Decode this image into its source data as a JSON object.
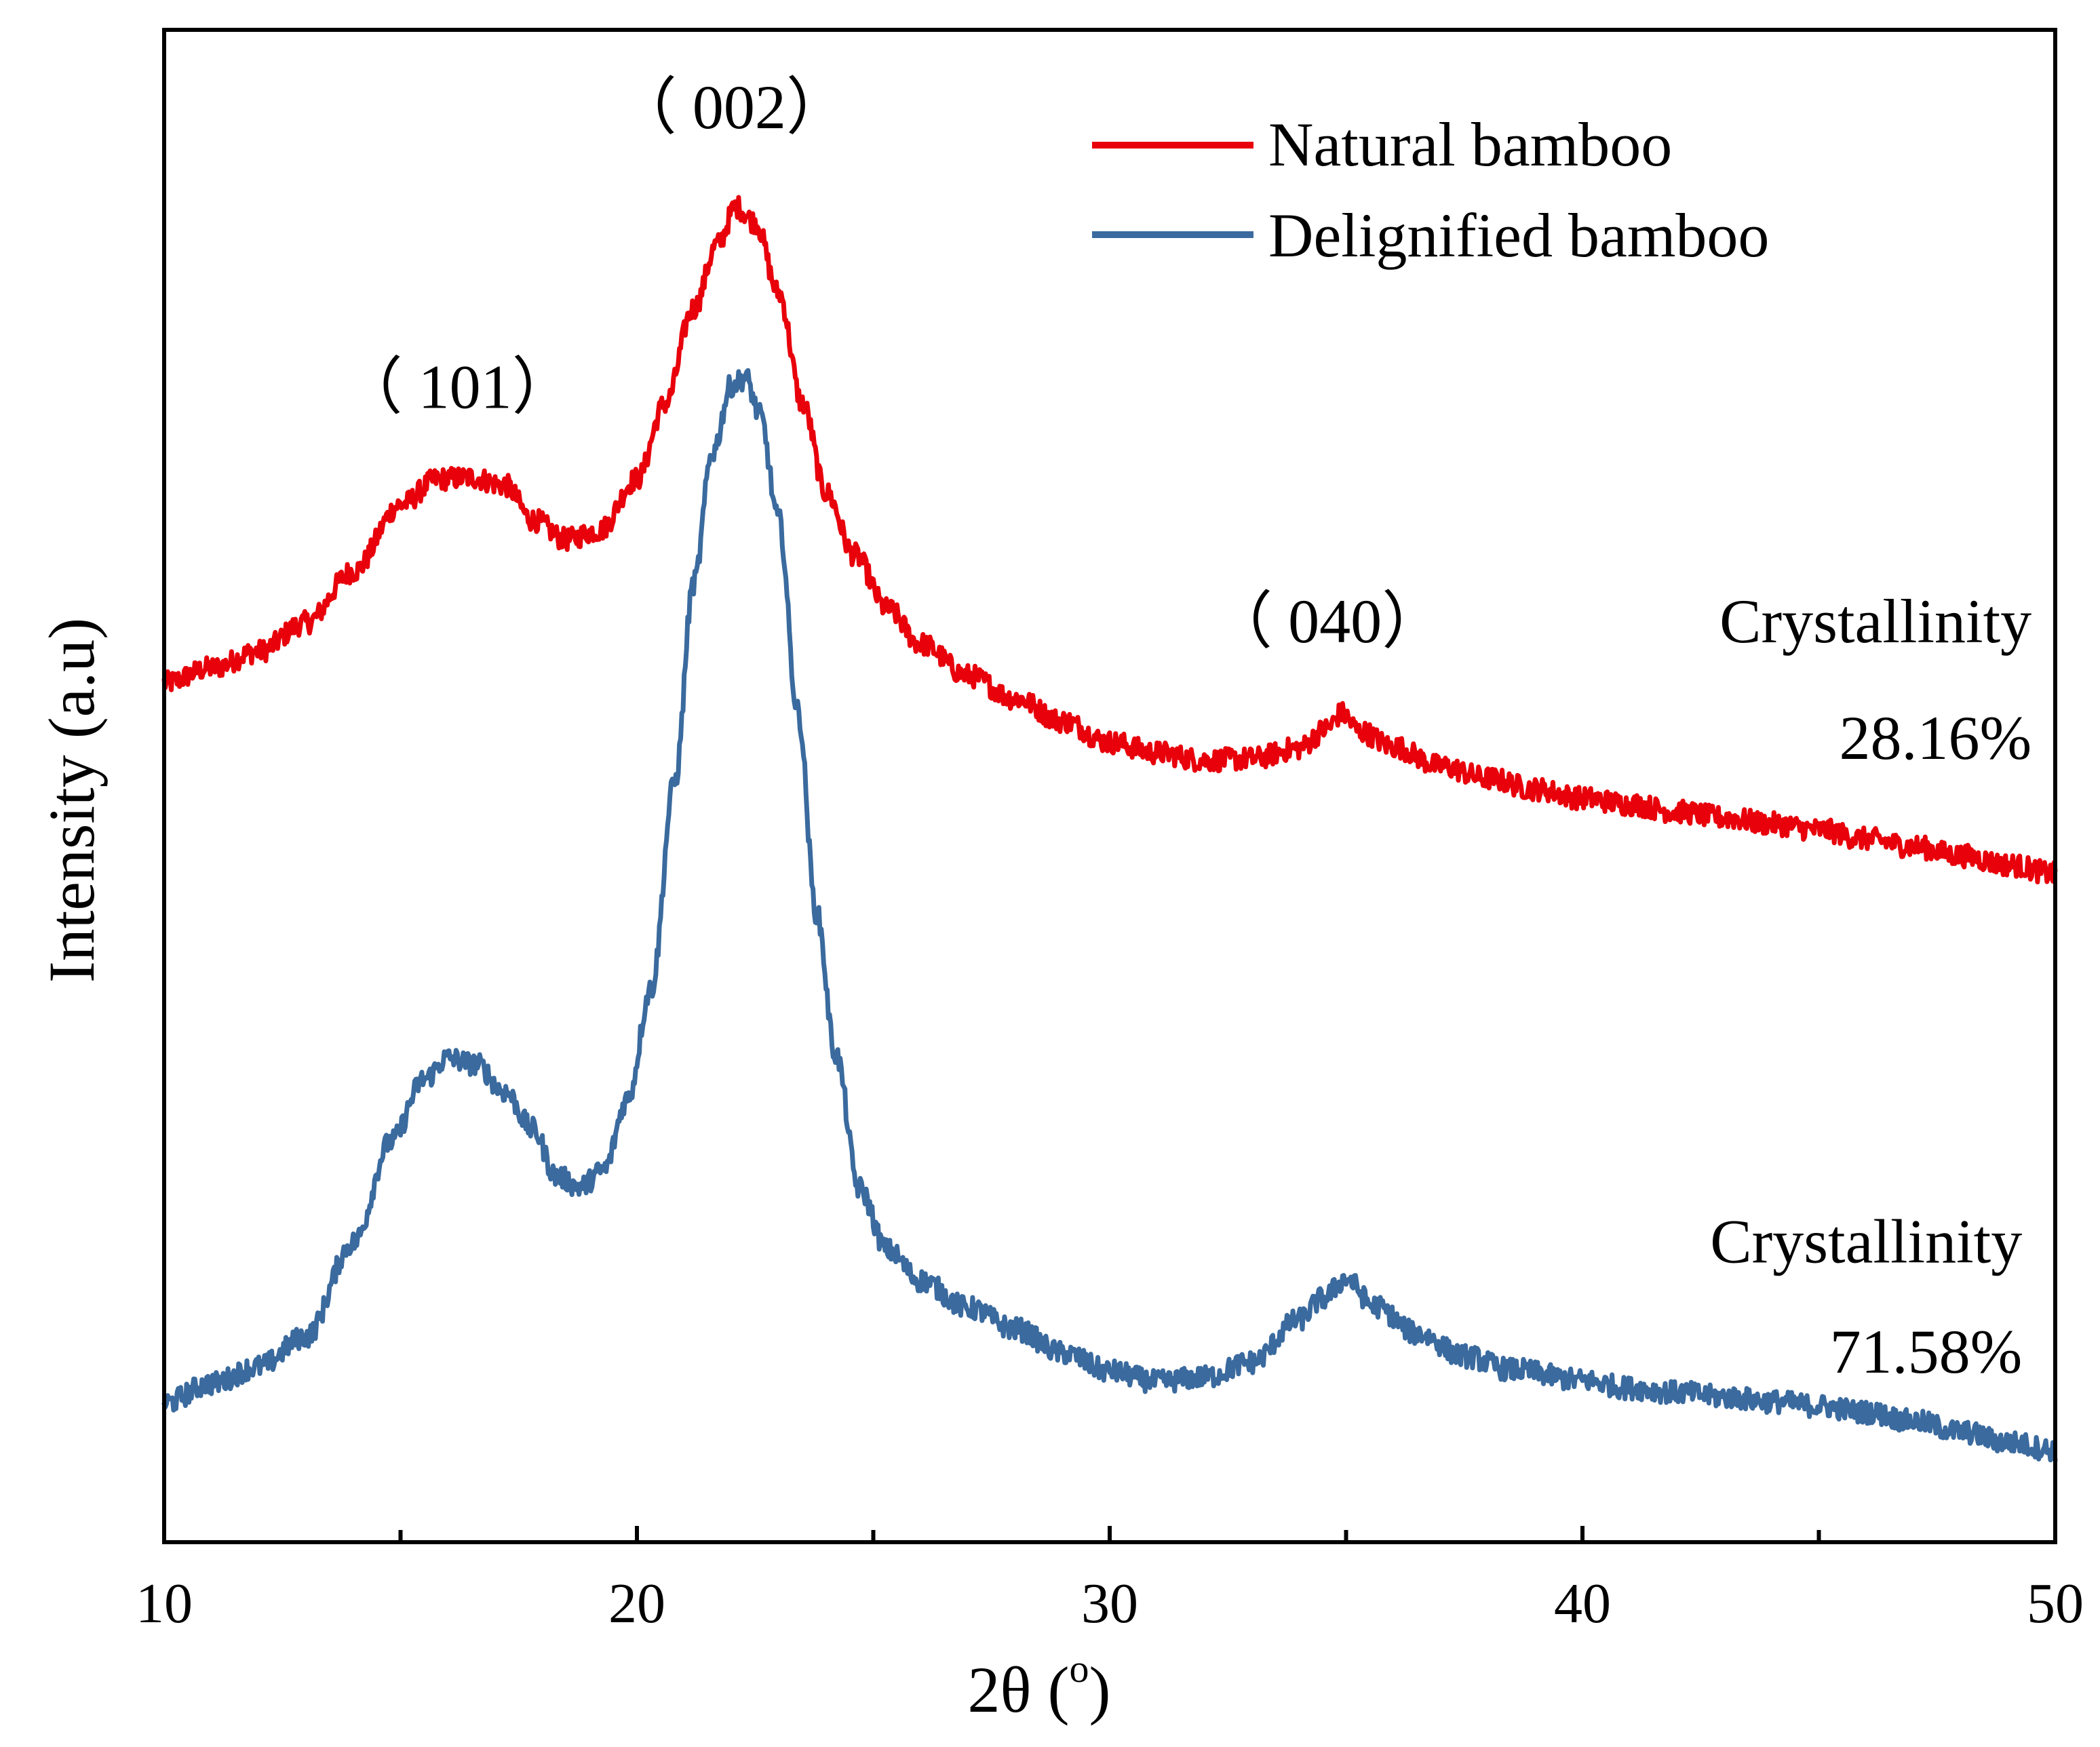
{
  "chart_data": {
    "type": "line",
    "title": "",
    "xlabel": "2θ (",
    "xlabel_sup": "o",
    "xlabel_close": ")",
    "ylabel": "Intensity (a.u)",
    "xlim": [
      10,
      50
    ],
    "ylim": [
      0,
      100
    ],
    "xticks": [
      10,
      20,
      30,
      40,
      50
    ],
    "minor_xticks": [
      15,
      25,
      35,
      45
    ],
    "xtick_labels": [
      "10",
      "20",
      "30",
      "40",
      "50"
    ],
    "grid": false,
    "legend_position": "top-right",
    "series": [
      {
        "name": "Natural bamboo",
        "color": "#e8000b",
        "points": [
          [
            10,
            56.8
          ],
          [
            11,
            57.8
          ],
          [
            12,
            58.9
          ],
          [
            13,
            60.8
          ],
          [
            14,
            64.2
          ],
          [
            15,
            68.6
          ],
          [
            15.8,
            70.3
          ],
          [
            16.5,
            70.4
          ],
          [
            17.2,
            69.9
          ],
          [
            17.8,
            67.6
          ],
          [
            18.5,
            66.3
          ],
          [
            19.2,
            66.9
          ],
          [
            20,
            70.3
          ],
          [
            20.6,
            75.3
          ],
          [
            21.2,
            81.6
          ],
          [
            21.7,
            85.8
          ],
          [
            22.1,
            88.3
          ],
          [
            22.5,
            87.3
          ],
          [
            23,
            82.6
          ],
          [
            23.5,
            75.3
          ],
          [
            24,
            69.4
          ],
          [
            24.6,
            65.3
          ],
          [
            25.3,
            61.7
          ],
          [
            26,
            59.4
          ],
          [
            27,
            57.3
          ],
          [
            28,
            55.8
          ],
          [
            29,
            54.3
          ],
          [
            30,
            52.9
          ],
          [
            31,
            52.2
          ],
          [
            32,
            51.7
          ],
          [
            33,
            51.8
          ],
          [
            34,
            52.5
          ],
          [
            34.6,
            53.8
          ],
          [
            34.9,
            54.8
          ],
          [
            35.3,
            53.6
          ],
          [
            36,
            52.6
          ],
          [
            37,
            51.3
          ],
          [
            38,
            50.5
          ],
          [
            39,
            49.8
          ],
          [
            40,
            49.2
          ],
          [
            41,
            48.8
          ],
          [
            42,
            48.3
          ],
          [
            43,
            47.9
          ],
          [
            44,
            47.5
          ],
          [
            45,
            47.1
          ],
          [
            46,
            46.5
          ],
          [
            47,
            46.0
          ],
          [
            48,
            45.4
          ],
          [
            49,
            44.8
          ],
          [
            50,
            44.2
          ]
        ]
      },
      {
        "name": "Delignified bamboo",
        "color": "#3a6a9e",
        "points": [
          [
            10,
            9.2
          ],
          [
            11,
            10.5
          ],
          [
            12,
            11.6
          ],
          [
            13,
            13.6
          ],
          [
            14,
            19.8
          ],
          [
            14.8,
            26.5
          ],
          [
            15.5,
            30.6
          ],
          [
            16,
            32.0
          ],
          [
            16.6,
            31.6
          ],
          [
            17.2,
            29.8
          ],
          [
            17.8,
            27.3
          ],
          [
            18.3,
            24.2
          ],
          [
            18.8,
            23.5
          ],
          [
            19.3,
            24.6
          ],
          [
            19.8,
            29.3
          ],
          [
            20.3,
            36.6
          ],
          [
            20.8,
            50.3
          ],
          [
            21.2,
            63.4
          ],
          [
            21.6,
            72.1
          ],
          [
            22.0,
            76.5
          ],
          [
            22.3,
            77.0
          ],
          [
            22.6,
            74.5
          ],
          [
            23.0,
            67.6
          ],
          [
            23.4,
            55.0
          ],
          [
            23.8,
            41.6
          ],
          [
            24.2,
            32.3
          ],
          [
            24.7,
            23.4
          ],
          [
            25.3,
            19.3
          ],
          [
            26,
            17.3
          ],
          [
            27,
            15.5
          ],
          [
            28,
            14.1
          ],
          [
            29,
            12.5
          ],
          [
            30,
            11.3
          ],
          [
            31,
            10.6
          ],
          [
            32,
            10.9
          ],
          [
            33,
            11.9
          ],
          [
            34,
            14.7
          ],
          [
            34.5,
            16.1
          ],
          [
            35,
            17.4
          ],
          [
            35.6,
            15.6
          ],
          [
            36.5,
            13.8
          ],
          [
            37.5,
            12.3
          ],
          [
            38.5,
            11.4
          ],
          [
            40,
            10.7
          ],
          [
            41,
            10.2
          ],
          [
            42,
            9.9
          ],
          [
            43,
            9.6
          ],
          [
            44,
            9.3
          ],
          [
            45,
            9.0
          ],
          [
            46,
            8.6
          ],
          [
            47,
            8.0
          ],
          [
            48,
            7.3
          ],
          [
            49,
            6.6
          ],
          [
            50,
            6.1
          ]
        ]
      }
    ],
    "annotations": [
      {
        "name": "peak-101-label",
        "text": "（ 101）",
        "x": 16.2,
        "y": 75.0
      },
      {
        "name": "peak-002-label",
        "text": "（ 002）",
        "x": 22.0,
        "y": 93.5
      },
      {
        "name": "peak-040-label",
        "text": "（ 040）",
        "x": 34.6,
        "y": 59.5
      },
      {
        "name": "crystallinity-natural-label",
        "text": "Crystallinity",
        "x": 49.5,
        "y": 59.5,
        "anchor": "end"
      },
      {
        "name": "crystallinity-natural-value",
        "text": "28.16%",
        "x": 49.5,
        "y": 51.8,
        "anchor": "end"
      },
      {
        "name": "crystallinity-delignified-label",
        "text": "Crystallinity",
        "x": 49.3,
        "y": 18.5,
        "anchor": "end"
      },
      {
        "name": "crystallinity-delignified-value",
        "text": "71.58%",
        "x": 49.3,
        "y": 11.2,
        "anchor": "end"
      }
    ]
  }
}
